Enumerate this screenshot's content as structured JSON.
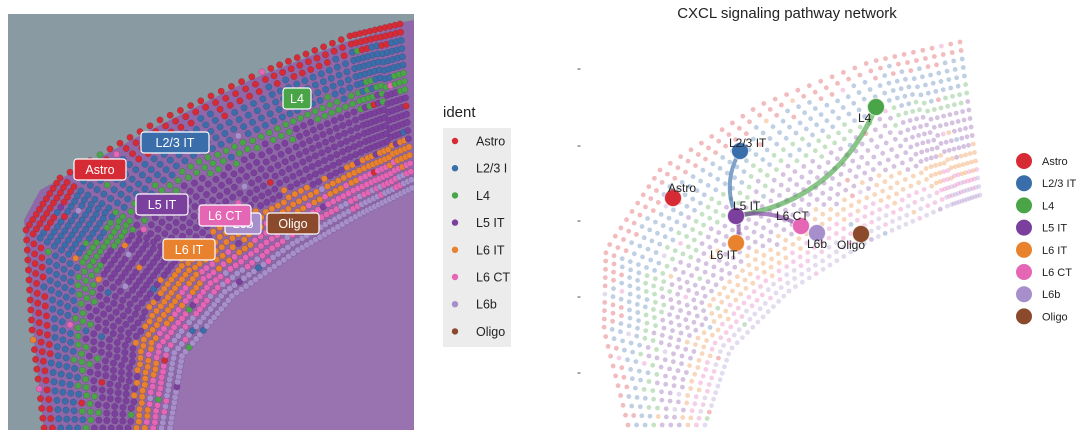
{
  "palette": {
    "Astro": "#d62b35",
    "L2/3 IT": "#3a6eaa",
    "L4": "#4aa548",
    "L5 IT": "#7b3f9e",
    "L6 IT": "#e8822e",
    "L6 CT": "#e566b4",
    "L6b": "#a78fcb",
    "Oligo": "#8a4a2b"
  },
  "left_panel": {
    "legend_title": "ident",
    "legend_items": [
      "Astro",
      "L2/3 I",
      "L4",
      "L5 IT",
      "L6 IT",
      "L6 CT",
      "L6b",
      "Oligo"
    ],
    "tissue_labels": [
      {
        "text": "L4",
        "cluster": "L4"
      },
      {
        "text": "L2/3 IT",
        "cluster": "L2/3 IT"
      },
      {
        "text": "Astro",
        "cluster": "Astro"
      },
      {
        "text": "L5 IT",
        "cluster": "L5 IT"
      },
      {
        "text": "L6b",
        "cluster": "L6b"
      },
      {
        "text": "L6 CT",
        "cluster": "L6 CT"
      },
      {
        "text": "Oligo",
        "cluster": "Oligo"
      },
      {
        "text": "L6 IT",
        "cluster": "L6 IT"
      }
    ]
  },
  "chart_data": {
    "type": "network",
    "title": "CXCL signaling pathway network",
    "nodes": [
      {
        "label": "Astro",
        "cluster": "Astro"
      },
      {
        "label": "L2/3 IT",
        "cluster": "L2/3 IT"
      },
      {
        "label": "L4",
        "cluster": "L4"
      },
      {
        "label": "L5 IT",
        "cluster": "L5 IT"
      },
      {
        "label": "L6 IT",
        "cluster": "L6 IT"
      },
      {
        "label": "L6 CT",
        "cluster": "L6 CT"
      },
      {
        "label": "L6b",
        "cluster": "L6b"
      },
      {
        "label": "Oligo",
        "cluster": "Oligo"
      }
    ],
    "edges": [
      {
        "source": "L2/3 IT",
        "target": "L5 IT"
      },
      {
        "source": "L4",
        "target": "L5 IT"
      },
      {
        "source": "L5 IT",
        "target": "L6 CT"
      },
      {
        "source": "L5 IT",
        "target": "L6 IT"
      }
    ],
    "legend_items": [
      "Astro",
      "L2/3 IT",
      "L4",
      "L5 IT",
      "L6 IT",
      "L6 CT",
      "L6b",
      "Oligo"
    ],
    "y_ticks": [
      "-",
      "-",
      "-",
      "-",
      "-"
    ]
  }
}
